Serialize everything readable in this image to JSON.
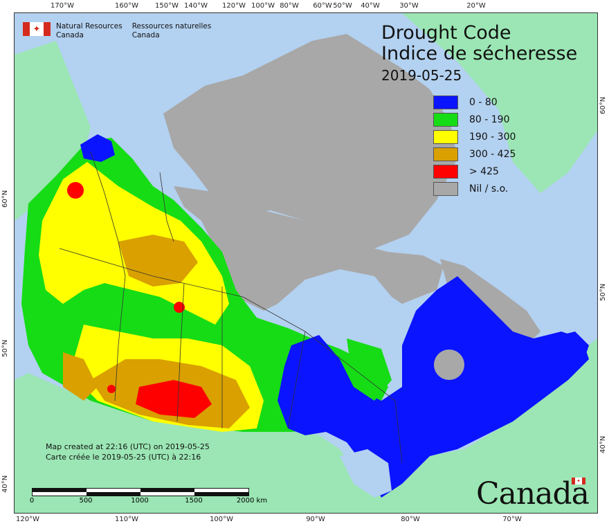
{
  "title": {
    "line1": "Drought Code",
    "line2": "Indice de sécheresse",
    "date": "2019-05-25"
  },
  "legend": [
    {
      "label": "0 - 80",
      "color": "#0a14ff"
    },
    {
      "label": "80 - 190",
      "color": "#16dc16"
    },
    {
      "label": "190 - 300",
      "color": "#ffff00"
    },
    {
      "label": "300 - 425",
      "color": "#d9a000"
    },
    {
      "label": "> 425",
      "color": "#ff0000"
    },
    {
      "label": "Nil / s.o.",
      "color": "#a8a8a8"
    }
  ],
  "agency": {
    "en_line1": "Natural Resources",
    "en_line2": "Canada",
    "fr_line1": "Ressources naturelles",
    "fr_line2": "Canada"
  },
  "notes": {
    "line1": "Map created at 22:16 (UTC) on 2019-05-25",
    "line2": "Carte créée le 2019-05-25 (UTC) à 22:16"
  },
  "scale": {
    "labels": [
      "0",
      "500",
      "1000",
      "1500",
      "2000 km"
    ]
  },
  "wordmark": "Canada",
  "graticule": {
    "top": [
      "170°W",
      "160°W",
      "150°W",
      "140°W",
      "120°W",
      "100°W",
      "80°W",
      "60°W",
      "50°W",
      "40°W",
      "30°W",
      "20°W"
    ],
    "bottom": [
      "120°W",
      "110°W",
      "100°W",
      "90°W",
      "80°W",
      "70°W"
    ],
    "left": [
      "60°N",
      "50°N",
      "40°N"
    ],
    "right": [
      "60°N",
      "50°N",
      "40°N"
    ]
  },
  "colors": {
    "water": "#b3d1f0",
    "other_land": "#9be6b4",
    "nil": "#a8a8a8"
  }
}
